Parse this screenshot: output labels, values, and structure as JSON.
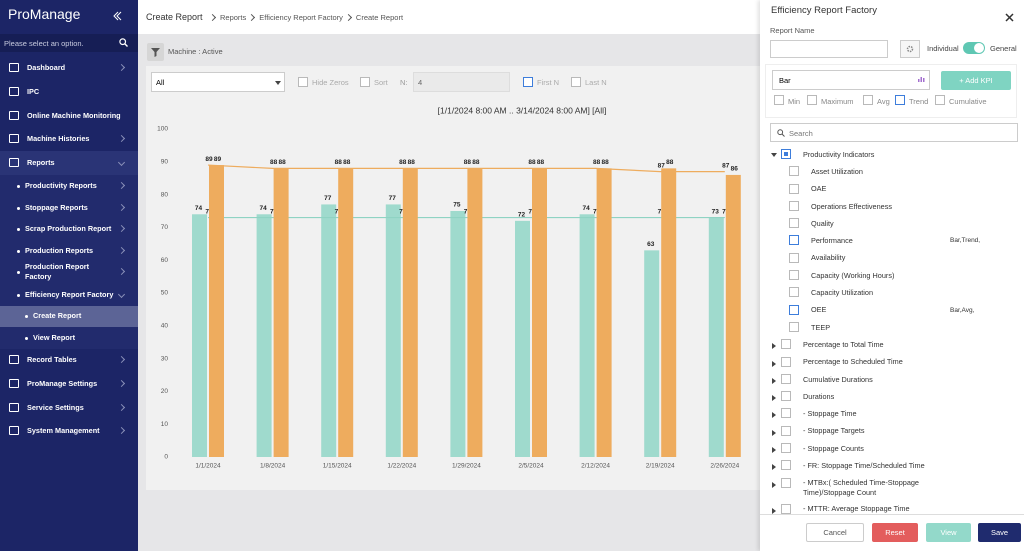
{
  "sidebar": {
    "logo": "ProManage",
    "search": "Please select an option.",
    "menu": [
      "Dashboard",
      "IPC",
      "Online Machine Monitoring",
      "Machine Histories",
      "Reports",
      "Productivity Reports",
      "Stoppage Reports",
      "Scrap Production Report",
      "Production Reports",
      "Production Report Factory",
      "Efficiency Report Factory",
      "Create Report",
      "View Report",
      "Record Tables",
      "ProManage Settings",
      "Service Settings",
      "System Management"
    ]
  },
  "header": {
    "title": "Create Report",
    "breadcrumbs": [
      "Reports",
      "Efficiency Report Factory",
      "Create Report"
    ]
  },
  "toolbar": {
    "filter": "Machine : Active",
    "scope": "All",
    "options": [
      {
        "label": "Hide Zeros",
        "checked": false
      },
      {
        "label": "Sort",
        "checked": false
      }
    ],
    "n_label": "N:",
    "n_value": "4",
    "first_n": {
      "label": "First N",
      "checked": true
    },
    "last_n": {
      "label": "Last N",
      "checked": false
    }
  },
  "chart_data": {
    "type": "bar",
    "title": "[1/1/2024 8:00 AM .. 3/14/2024 8:00 AM] [All]",
    "categories": [
      "1/1/2024",
      "1/8/2024",
      "1/15/2024",
      "1/22/2024",
      "1/29/2024",
      "2/5/2024",
      "2/12/2024",
      "2/19/2024",
      "2/26/2024"
    ],
    "series": [
      {
        "type": "bar",
        "color": "#9fdacd",
        "values": [
          74,
          74,
          77,
          77,
          75,
          72,
          74,
          63,
          73
        ]
      },
      {
        "type": "line",
        "color": "#8fd3c3",
        "values": [
          73,
          73,
          73,
          73,
          73,
          73,
          73,
          73,
          73
        ]
      },
      {
        "type": "bar",
        "color": "#eeac5e",
        "values": [
          89,
          88,
          88,
          88,
          88,
          88,
          88,
          88,
          86
        ]
      },
      {
        "type": "line",
        "color": "#eeac5e",
        "values": [
          89,
          88,
          88,
          88,
          88,
          88,
          88,
          87,
          87
        ]
      }
    ],
    "ylim": [
      0,
      100
    ],
    "yticks": [
      0,
      10,
      20,
      30,
      40,
      50,
      60,
      70,
      80,
      90,
      100
    ],
    "grid": false
  },
  "panel": {
    "title": "Efficiency Report Factory",
    "report_name_label": "Report Name",
    "mode": {
      "left": "Individual",
      "right": "General",
      "value": "General"
    },
    "chart_type": "Bar",
    "add_kpi": "+ Add KPI",
    "aggregates": [
      {
        "label": "Min",
        "checked": false
      },
      {
        "label": "Maximum",
        "checked": false
      },
      {
        "label": "Avg",
        "checked": false
      },
      {
        "label": "Trend",
        "checked": true
      },
      {
        "label": "Cumulative",
        "checked": false
      }
    ],
    "search": "Search",
    "tree": [
      {
        "label": "Productivity Indicators",
        "checked": "partial",
        "expanded": true,
        "children": [
          {
            "label": "Asset Utilization"
          },
          {
            "label": "OAE"
          },
          {
            "label": "Operations Effectiveness"
          },
          {
            "label": "Quality"
          },
          {
            "label": "Performance",
            "checked": true,
            "tags": "Bar,Trend,"
          },
          {
            "label": "Availability"
          },
          {
            "label": "Capacity (Working Hours)"
          },
          {
            "label": "Capacity Utilization"
          },
          {
            "label": "OEE",
            "checked": true,
            "tags": "Bar,Avg,"
          },
          {
            "label": "TEEP"
          }
        ]
      },
      {
        "label": "Percentage to Total Time"
      },
      {
        "label": "Percentage to Scheduled Time"
      },
      {
        "label": "Cumulative Durations"
      },
      {
        "label": "Durations"
      },
      {
        "label": "- Stoppage Time"
      },
      {
        "label": "- Stoppage Targets"
      },
      {
        "label": "- Stoppage Counts"
      },
      {
        "label": "- FR: Stoppage Time/Scheduled Time"
      },
      {
        "label": "- MTBx:( Scheduled Time-Stoppage Time)/Stoppage Count"
      },
      {
        "label": "- MTTR: Average Stoppage Time"
      }
    ],
    "buttons": [
      "Cancel",
      "Reset",
      "View",
      "Save"
    ]
  }
}
